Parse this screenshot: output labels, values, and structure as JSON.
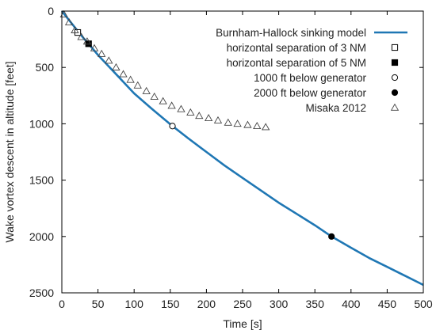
{
  "chart_data": {
    "type": "line",
    "xlabel": "Time  [s]",
    "ylabel": "Wake vortex descent in altitude  [feet]",
    "xlim": [
      0,
      500
    ],
    "ylim": [
      0,
      2500
    ],
    "y_inverted": true,
    "grid": false,
    "legend_placement": "top-right",
    "x_ticks": [
      0,
      50,
      100,
      150,
      200,
      250,
      300,
      350,
      400,
      450,
      500
    ],
    "y_ticks": [
      0,
      500,
      1000,
      1500,
      2000,
      2500
    ],
    "colors": {
      "model": "#1f77b4",
      "markers": "#000000",
      "misaka": "#444444"
    },
    "series": [
      {
        "name": "Burnham-Hallock sinking model",
        "kind": "line",
        "x": [
          0,
          10,
          20,
          30,
          37,
          50,
          75,
          100,
          125,
          153,
          175,
          200,
          225,
          250,
          275,
          300,
          325,
          350,
          373,
          400,
          425,
          450,
          475,
          500
        ],
        "y": [
          0,
          80,
          160,
          240,
          290,
          390,
          560,
          730,
          870,
          1020,
          1130,
          1250,
          1370,
          1480,
          1590,
          1700,
          1800,
          1900,
          2000,
          2100,
          2190,
          2270,
          2350,
          2430
        ]
      },
      {
        "name": "horizontal separation of 3 NM",
        "kind": "marker",
        "marker": "open-square",
        "x": [
          22
        ],
        "y": [
          190
        ]
      },
      {
        "name": "horizontal separation of 5 NM",
        "kind": "marker",
        "marker": "filled-square",
        "x": [
          37
        ],
        "y": [
          290
        ]
      },
      {
        "name": "1000 ft below generator",
        "kind": "marker",
        "marker": "open-circle",
        "x": [
          153
        ],
        "y": [
          1020
        ]
      },
      {
        "name": "2000 ft below generator",
        "kind": "marker",
        "marker": "filled-circle",
        "x": [
          373
        ],
        "y": [
          2000
        ]
      },
      {
        "name": "Misaka 2012",
        "kind": "marker",
        "marker": "open-triangle",
        "x": [
          3,
          10,
          18,
          27,
          35,
          45,
          55,
          65,
          75,
          85,
          95,
          105,
          117,
          128,
          140,
          152,
          165,
          178,
          190,
          203,
          216,
          230,
          243,
          257,
          270,
          282
        ],
        "y": [
          30,
          100,
          170,
          230,
          270,
          330,
          380,
          440,
          500,
          560,
          610,
          660,
          710,
          760,
          800,
          840,
          870,
          900,
          930,
          950,
          970,
          990,
          1000,
          1010,
          1020,
          1030
        ]
      }
    ]
  }
}
